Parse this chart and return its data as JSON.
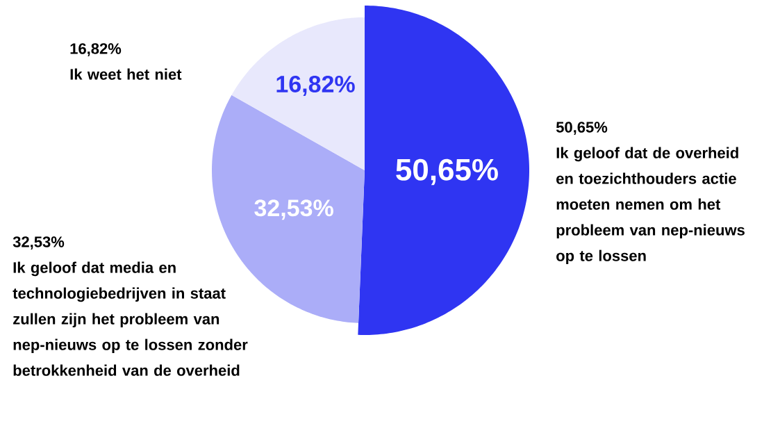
{
  "chart_data": {
    "type": "pie",
    "categories": [
      "Ik geloof dat de overheid en toezichthouders actie moeten nemen om het probleem van nep-nieuws op te lossen",
      "Ik geloof dat media en technologiebedrijven in staat zullen zijn het probleem van nep-nieuws op te lossen zonder betrokkenheid van de overheid",
      "Ik weet het niet"
    ],
    "values": [
      50.65,
      32.53,
      16.82
    ],
    "value_labels": [
      "50,65%",
      "32,53%",
      "16,82%"
    ],
    "colors": [
      "#2f35f2",
      "#abadf8",
      "#e8e8fc"
    ]
  }
}
